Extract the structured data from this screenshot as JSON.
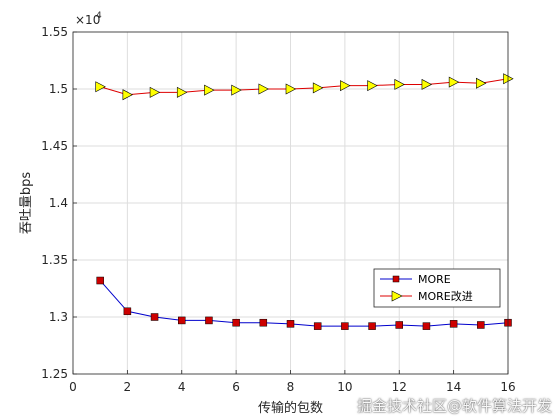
{
  "chart_data": {
    "type": "line",
    "xlabel": "传输的包数",
    "ylabel": "吞吐量bps",
    "exponent_label": "×10",
    "exponent_power": "4",
    "xlim": [
      0,
      16
    ],
    "ylim": [
      1.25,
      1.55
    ],
    "x_ticks": [
      "0",
      "2",
      "4",
      "6",
      "8",
      "10",
      "12",
      "14",
      "16"
    ],
    "y_ticks": [
      "1.25",
      "1.3",
      "1.35",
      "1.4",
      "1.45",
      "1.5",
      "1.55"
    ],
    "grid": true,
    "legend_position": "lower-right",
    "x": [
      1,
      2,
      3,
      4,
      5,
      6,
      7,
      8,
      9,
      10,
      11,
      12,
      13,
      14,
      15,
      16
    ],
    "series": [
      {
        "name": "MORE",
        "color": "#0000cc",
        "marker": "square",
        "marker_color": "#cc0000",
        "values": [
          1.332,
          1.305,
          1.3,
          1.297,
          1.297,
          1.295,
          1.295,
          1.294,
          1.292,
          1.292,
          1.292,
          1.293,
          1.292,
          1.294,
          1.293,
          1.295
        ]
      },
      {
        "name": "MORE改进",
        "color": "#dd0000",
        "marker": "triangle-right",
        "marker_color": "#ffff00",
        "values": [
          1.502,
          1.495,
          1.497,
          1.497,
          1.499,
          1.499,
          1.5,
          1.5,
          1.501,
          1.503,
          1.503,
          1.504,
          1.504,
          1.506,
          1.505,
          1.509
        ]
      }
    ]
  },
  "watermark": "掘金技术社区@软件算法开发"
}
